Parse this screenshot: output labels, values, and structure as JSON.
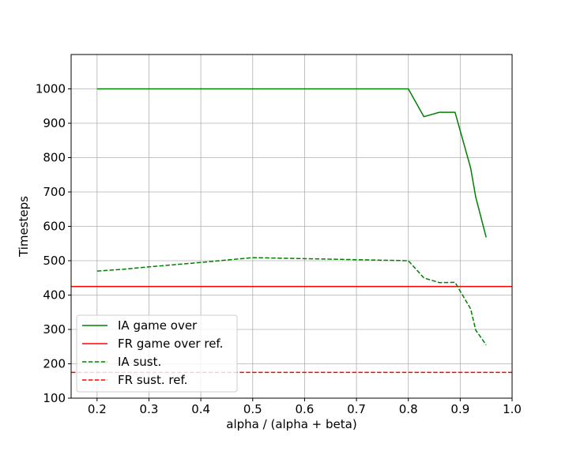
{
  "chart_data": {
    "type": "line",
    "title": "",
    "xlabel": "alpha / (alpha + beta)",
    "ylabel": "Timesteps",
    "xlim": [
      0.15,
      1.0
    ],
    "ylim": [
      100,
      1100
    ],
    "xticks": [
      0.2,
      0.3,
      0.4,
      0.5,
      0.6,
      0.7,
      0.8,
      0.9,
      1.0
    ],
    "xtick_labels": [
      "0.2",
      "0.3",
      "0.4",
      "0.5",
      "0.6",
      "0.7",
      "0.8",
      "0.9",
      "1.0"
    ],
    "yticks": [
      100,
      200,
      300,
      400,
      500,
      600,
      700,
      800,
      900,
      1000
    ],
    "ytick_labels": [
      "100",
      "200",
      "300",
      "400",
      "500",
      "600",
      "700",
      "800",
      "900",
      "1000"
    ],
    "grid": true,
    "legend_position": "lower-left",
    "series": [
      {
        "name": "IA game over",
        "color": "#008000",
        "dash": "solid",
        "x": [
          0.2,
          0.3,
          0.4,
          0.5,
          0.6,
          0.7,
          0.8,
          0.83,
          0.86,
          0.89,
          0.92,
          0.93,
          0.95
        ],
        "y": [
          1000,
          1000,
          1000,
          1000,
          1000,
          1000,
          1000,
          919,
          932,
          932,
          770,
          685,
          568
        ]
      },
      {
        "name": "FR game over ref.",
        "color": "#ff0000",
        "dash": "solid",
        "x": [
          0.15,
          1.0
        ],
        "y": [
          425,
          425
        ]
      },
      {
        "name": "IA sust.",
        "color": "#008000",
        "dash": "dashed",
        "x": [
          0.2,
          0.25,
          0.3,
          0.4,
          0.5,
          0.6,
          0.7,
          0.8,
          0.83,
          0.86,
          0.89,
          0.92,
          0.93,
          0.95
        ],
        "y": [
          470,
          475,
          482,
          495,
          509,
          506,
          503,
          500,
          450,
          436,
          437,
          360,
          298,
          255
        ]
      },
      {
        "name": "FR sust. ref.",
        "color": "#ff0000",
        "dash": "dashed",
        "x": [
          0.15,
          1.0
        ],
        "y": [
          175,
          175
        ]
      }
    ]
  }
}
